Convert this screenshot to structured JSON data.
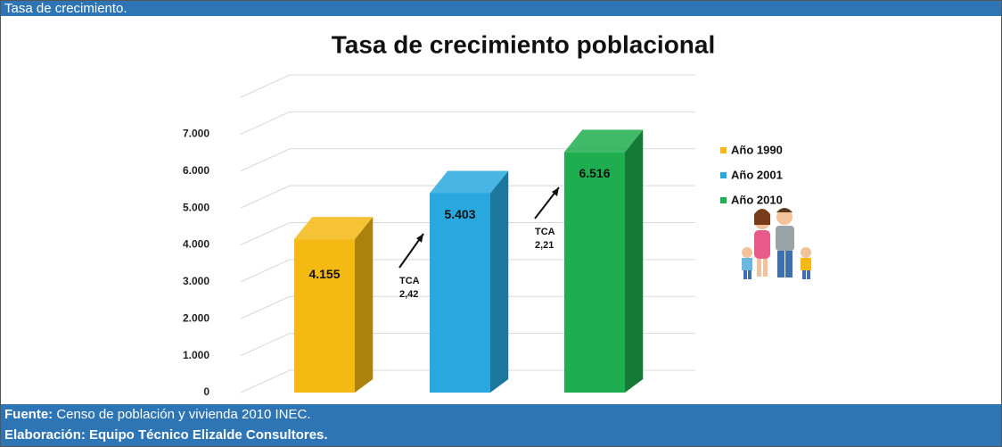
{
  "header": {
    "title": "Tasa de crecimiento."
  },
  "chart_data": {
    "type": "bar3d",
    "title": "Tasa de crecimiento poblacional",
    "categories": [
      "Año 1990",
      "Año 2001",
      "Año 2010"
    ],
    "values": [
      4155,
      5403,
      6516
    ],
    "value_labels": [
      "4.155",
      "5.403",
      "6.516"
    ],
    "colors": [
      "#f5b914",
      "#29a8e0",
      "#1fae4f"
    ],
    "ylim": [
      0,
      8000
    ],
    "yticks": [
      0,
      {
        "value": 1000,
        "label": "1.000"
      },
      {
        "value": 2000,
        "label": "2.000"
      },
      {
        "value": 3000,
        "label": "3.000"
      },
      {
        "value": 4000,
        "label": "4.000"
      },
      {
        "value": 5000,
        "label": "5.000"
      },
      {
        "value": 6000,
        "label": "6.000"
      },
      {
        "value": 7000,
        "label": "7.000"
      }
    ],
    "grid": true,
    "annotations": [
      {
        "label": "TCA",
        "value": "2,42"
      },
      {
        "label": "TCA",
        "value": "2,21"
      }
    ]
  },
  "footer": {
    "source_label": "Fuente:",
    "source": "Censo de población y vivienda 2010 INEC.",
    "credit": "Elaboración: Equipo Técnico Elizalde Consultores."
  }
}
